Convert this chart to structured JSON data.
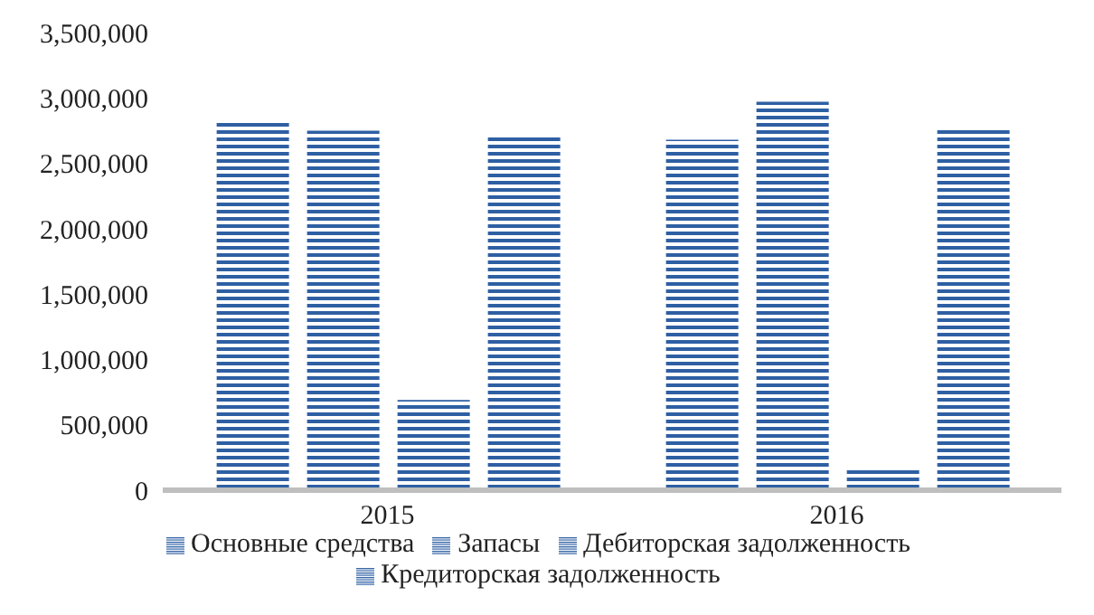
{
  "chart_data": {
    "type": "bar",
    "categories": [
      "2015",
      "2016"
    ],
    "series": [
      {
        "name": "Основные средства",
        "color": "#2e5fa3",
        "values": [
          2820000,
          2680000
        ]
      },
      {
        "name": "Запасы",
        "color": "#2e5fa3",
        "values": [
          2750000,
          2970000
        ]
      },
      {
        "name": "Дебиторская задолженность",
        "color": "#2e5fa3",
        "values": [
          690000,
          170000
        ]
      },
      {
        "name": "Кредиторская задолженность",
        "color": "#2e5fa3",
        "values": [
          2710000,
          2780000
        ]
      }
    ],
    "ylim": [
      0,
      3500000
    ],
    "yticks": [
      0,
      {
        "value": 500000,
        "label": "500,000"
      },
      {
        "value": 1000000,
        "label": "1,000,000"
      },
      {
        "value": 1500000,
        "label": "1,500,000"
      },
      {
        "value": 2000000,
        "label": "2,000,000"
      },
      {
        "value": 2500000,
        "label": "2,500,000"
      },
      {
        "value": 3000000,
        "label": "3,000,000"
      },
      {
        "value": 3500000,
        "label": "3,500,000"
      }
    ],
    "grid": false,
    "legend": "bottom"
  }
}
